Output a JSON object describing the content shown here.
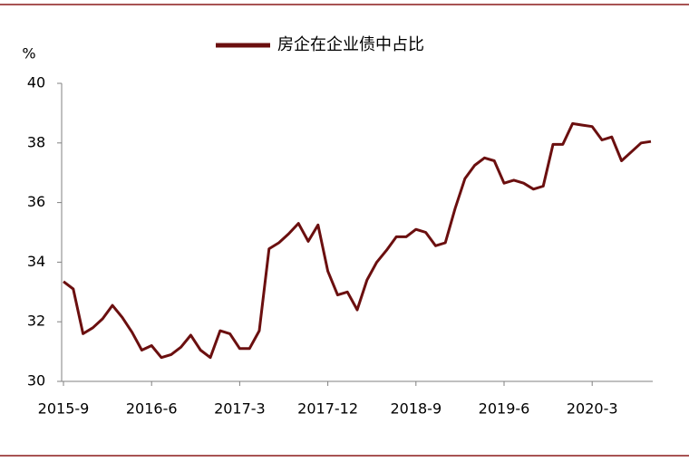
{
  "chart_data": {
    "type": "line",
    "ylabel": "%",
    "categories": [
      "2015-9",
      null,
      null,
      null,
      null,
      null,
      null,
      null,
      null,
      "2016-6",
      null,
      null,
      null,
      null,
      null,
      null,
      null,
      null,
      "2017-3",
      null,
      null,
      null,
      null,
      null,
      null,
      null,
      null,
      "2017-12",
      null,
      null,
      null,
      null,
      null,
      null,
      null,
      null,
      "2018-9",
      null,
      null,
      null,
      null,
      null,
      null,
      null,
      null,
      "2019-6",
      null,
      null,
      null,
      null,
      null,
      null,
      null,
      null,
      "2020-3",
      null,
      null,
      null,
      null,
      null,
      null
    ],
    "series": [
      {
        "name": "房企在企业债中占比",
        "color": "#6b0f0f",
        "values": [
          33.35,
          33.1,
          31.6,
          31.8,
          32.1,
          32.55,
          32.15,
          31.65,
          31.05,
          31.2,
          30.8,
          30.9,
          31.15,
          31.55,
          31.05,
          30.8,
          31.7,
          31.6,
          31.1,
          31.1,
          31.7,
          34.45,
          34.65,
          34.95,
          35.3,
          34.7,
          35.25,
          33.7,
          32.9,
          33.0,
          32.4,
          33.4,
          34.0,
          34.4,
          34.85,
          34.85,
          35.1,
          35.0,
          34.55,
          34.65,
          35.8,
          36.8,
          37.25,
          37.5,
          37.4,
          36.65,
          36.75,
          36.65,
          36.45,
          36.55,
          37.95,
          37.95,
          38.65,
          38.6,
          38.55,
          38.1,
          38.2,
          37.4,
          37.7,
          38.0,
          38.05
        ]
      }
    ],
    "ylim": [
      30,
      40
    ],
    "yticks": [
      30,
      32,
      34,
      36,
      38,
      40
    ],
    "grid": false,
    "legend": "top"
  }
}
